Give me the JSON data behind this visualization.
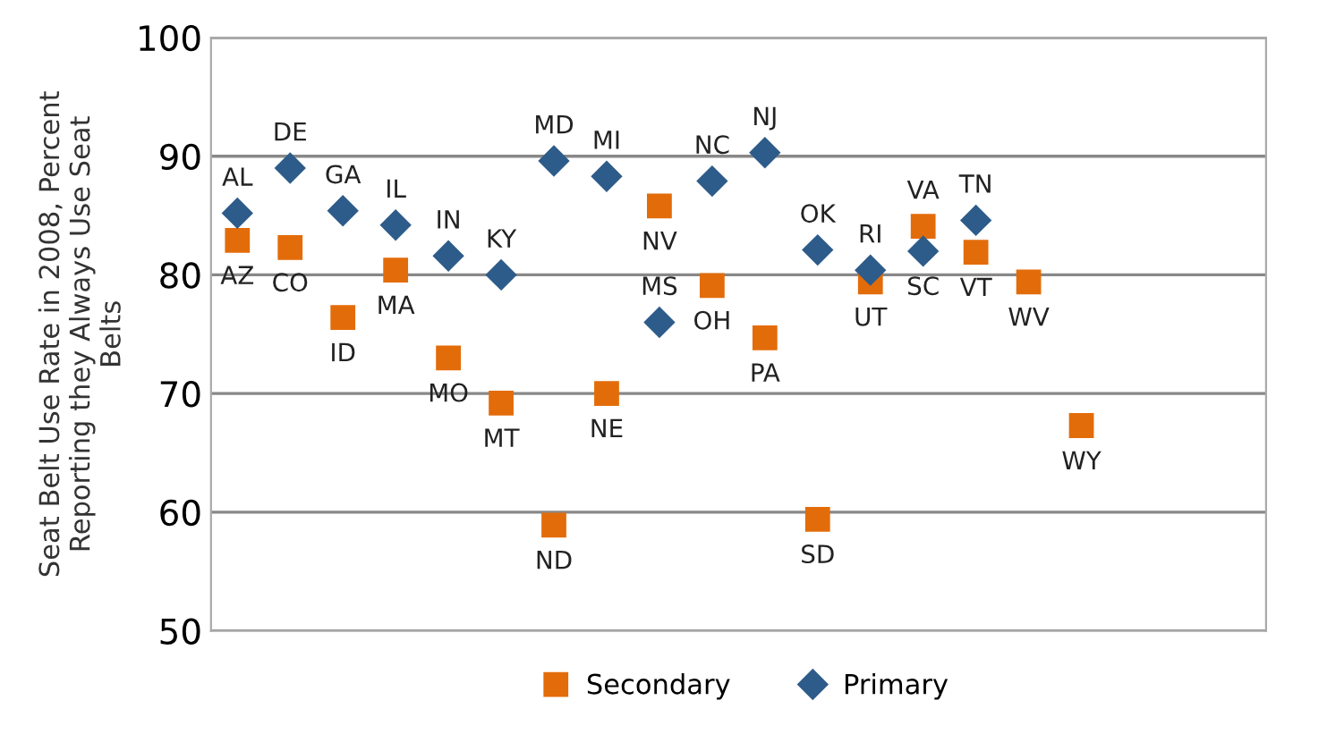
{
  "chart_data": {
    "type": "scatter",
    "ylabel": "Seat Belt Use Rate in 2008, Percent\nReporting they Always Use Seat\nBelts",
    "categories": [
      null,
      null,
      null,
      null,
      null,
      null,
      null,
      null,
      null,
      null,
      null,
      null,
      null,
      null,
      null,
      null,
      null,
      null,
      null,
      null
    ],
    "series": [
      {
        "name": "Secondary",
        "color": "#e36c0a",
        "marker": "square",
        "values": [
          82.9,
          82.3,
          76.4,
          80.4,
          73.0,
          69.2,
          58.9,
          70.0,
          85.8,
          79.1,
          74.7,
          59.4,
          79.4,
          84.1,
          81.9,
          79.4,
          67.3,
          null,
          null,
          null
        ],
        "value_labels": [
          "AZ",
          "CO",
          "ID",
          "MA",
          "MO",
          "MT",
          "ND",
          "NE",
          "NV",
          "OH",
          "PA",
          "SD",
          "UT",
          "VA",
          "VT",
          "WV",
          "WY",
          null,
          null,
          null
        ]
      },
      {
        "name": "Primary",
        "color": "#2e5c8a",
        "marker": "diamond",
        "values": [
          85.2,
          89.0,
          85.4,
          84.2,
          81.6,
          80.0,
          89.6,
          88.3,
          76.0,
          87.9,
          90.3,
          82.1,
          80.4,
          82.0,
          84.6,
          null,
          null,
          null,
          null,
          null
        ],
        "value_labels": [
          "AL",
          "DE",
          "GA",
          "IL",
          "IN",
          "KY",
          "MD",
          "MI",
          "MS",
          "NC",
          "NJ",
          "OK",
          "RI",
          "SC",
          "TN",
          null,
          null,
          null,
          null,
          null
        ]
      }
    ],
    "ylim": [
      50,
      100
    ],
    "yticks": [
      50,
      60,
      70,
      80,
      90,
      100
    ],
    "grid": "y",
    "legend": "bottom",
    "tick_labels": "y"
  }
}
